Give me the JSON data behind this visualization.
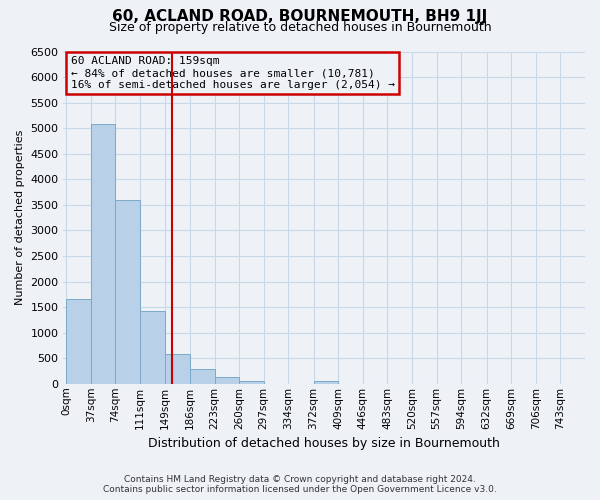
{
  "title": "60, ACLAND ROAD, BOURNEMOUTH, BH9 1JJ",
  "subtitle": "Size of property relative to detached houses in Bournemouth",
  "xlabel": "Distribution of detached houses by size in Bournemouth",
  "ylabel": "Number of detached properties",
  "bar_left_edges": [
    0,
    37,
    74,
    111,
    149,
    186,
    223,
    260,
    297,
    334,
    372,
    409,
    446,
    483,
    520,
    557,
    594,
    632,
    669,
    706
  ],
  "bar_heights": [
    1650,
    5080,
    3600,
    1430,
    580,
    290,
    140,
    50,
    0,
    0,
    50,
    0,
    0,
    0,
    0,
    0,
    0,
    0,
    0,
    0
  ],
  "bin_width": 37,
  "bar_color": "#b8d0e8",
  "bar_edge_color": "#7aaac8",
  "property_value": 159,
  "vline_color": "#cc0000",
  "annotation_text_line1": "60 ACLAND ROAD: 159sqm",
  "annotation_text_line2": "← 84% of detached houses are smaller (10,781)",
  "annotation_text_line3": "16% of semi-detached houses are larger (2,054) →",
  "annotation_box_color": "#cc0000",
  "ylim": [
    0,
    6500
  ],
  "yticks": [
    0,
    500,
    1000,
    1500,
    2000,
    2500,
    3000,
    3500,
    4000,
    4500,
    5000,
    5500,
    6000,
    6500
  ],
  "xtick_labels": [
    "0sqm",
    "37sqm",
    "74sqm",
    "111sqm",
    "149sqm",
    "186sqm",
    "223sqm",
    "260sqm",
    "297sqm",
    "334sqm",
    "372sqm",
    "409sqm",
    "446sqm",
    "483sqm",
    "520sqm",
    "557sqm",
    "594sqm",
    "632sqm",
    "669sqm",
    "706sqm",
    "743sqm"
  ],
  "xtick_positions": [
    0,
    37,
    74,
    111,
    149,
    186,
    223,
    260,
    297,
    334,
    372,
    409,
    446,
    483,
    520,
    557,
    594,
    632,
    669,
    706,
    743
  ],
  "grid_color": "#c8d8e8",
  "background_color": "#eef2f7",
  "footer_line1": "Contains HM Land Registry data © Crown copyright and database right 2024.",
  "footer_line2": "Contains public sector information licensed under the Open Government Licence v3.0."
}
